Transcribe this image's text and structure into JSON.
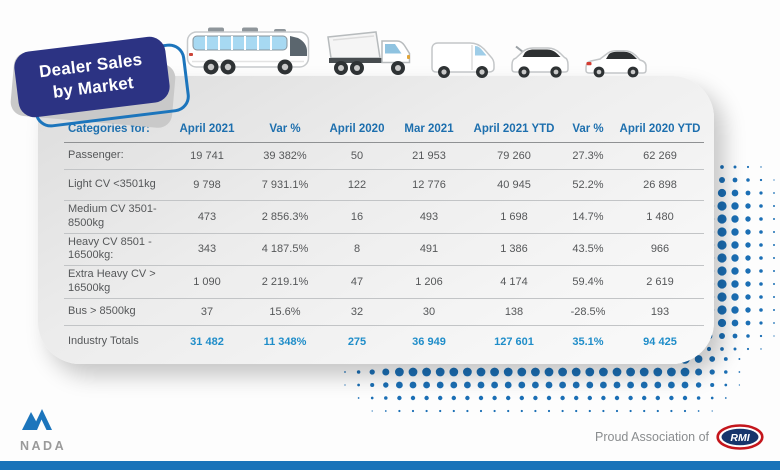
{
  "badge": {
    "line1": "Dealer Sales",
    "line2": "by Market"
  },
  "vehicles": [
    "coach-bus",
    "tipper-truck",
    "panel-van",
    "station-wagon",
    "sedan"
  ],
  "chart_data": {
    "type": "table",
    "title": "Dealer Sales by Market",
    "columns": [
      "Categories for:",
      "April 2021",
      "Var %",
      "April 2020",
      "Mar 2021",
      "April 2021 YTD",
      "Var %",
      "April 2020 YTD"
    ],
    "rows": [
      [
        "Passenger:",
        "19 741",
        "39 382%",
        "50",
        "21 953",
        "79 260",
        "27.3%",
        "62 269"
      ],
      [
        "Light CV <3501kg",
        "9 798",
        "7 931.1%",
        "122",
        "12 776",
        "40 945",
        "52.2%",
        "26 898"
      ],
      [
        "Medium CV 3501-8500kg",
        "473",
        "2 856.3%",
        "16",
        "493",
        "1 698",
        "14.7%",
        "1 480"
      ],
      [
        "Heavy CV 8501 - 16500kg:",
        "343",
        "4 187.5%",
        "8",
        "491",
        "1 386",
        "43.5%",
        "966"
      ],
      [
        "Extra Heavy CV > 16500kg",
        "1 090",
        "2 219.1%",
        "47",
        "1 206",
        "4 174",
        "59.4%",
        "2 619"
      ],
      [
        "Bus > 8500kg",
        "37",
        "15.6%",
        "32",
        "30",
        "138",
        "-28.5%",
        "193"
      ],
      [
        "Industry Totals",
        "31 482",
        "11 348%",
        "275",
        "36 949",
        "127 601",
        "35.1%",
        "94 425"
      ]
    ],
    "totals_row_index": 6
  },
  "footer": {
    "nada_label": "NADA",
    "association_text": "Proud Association of",
    "rmi_label": "RMI"
  },
  "colors": {
    "accent_blue": "#1c75bc",
    "header_text_blue": "#1d6fae",
    "totals_text_blue": "#1f8dc9",
    "badge_navy": "#2c3383",
    "dot_blue": "#1b6fb5",
    "rmi_red": "#c4161c",
    "rmi_navy": "#17356b",
    "bottom_bar_blue": "#1a73b9"
  }
}
